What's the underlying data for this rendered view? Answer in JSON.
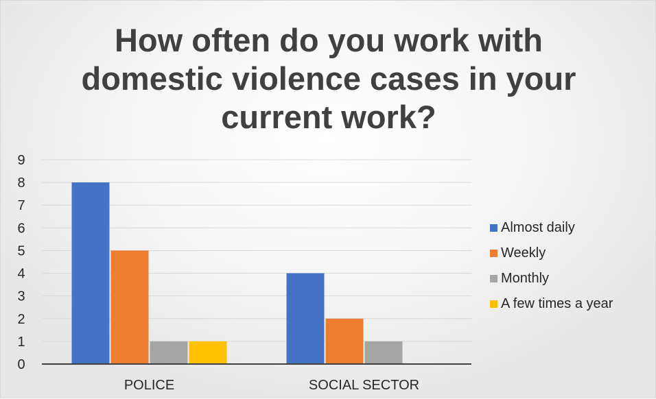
{
  "chart_data": {
    "type": "bar",
    "title": "How often do you work with domestic violence cases in your current work?",
    "categories": [
      "POLICE",
      "SOCIAL SECTOR"
    ],
    "series": [
      {
        "name": "Almost daily",
        "values": [
          8,
          4
        ],
        "color": "#4472C4"
      },
      {
        "name": "Weekly",
        "values": [
          5,
          2
        ],
        "color": "#ED7D31"
      },
      {
        "name": "Monthly",
        "values": [
          1,
          1
        ],
        "color": "#A5A5A5"
      },
      {
        "name": "A few times a year",
        "values": [
          1,
          0
        ],
        "color": "#FFC000"
      }
    ],
    "ylim": [
      0,
      9
    ],
    "yticks": [
      0,
      1,
      2,
      3,
      4,
      5,
      6,
      7,
      8,
      9
    ],
    "grid": true,
    "legend_position": "right"
  }
}
